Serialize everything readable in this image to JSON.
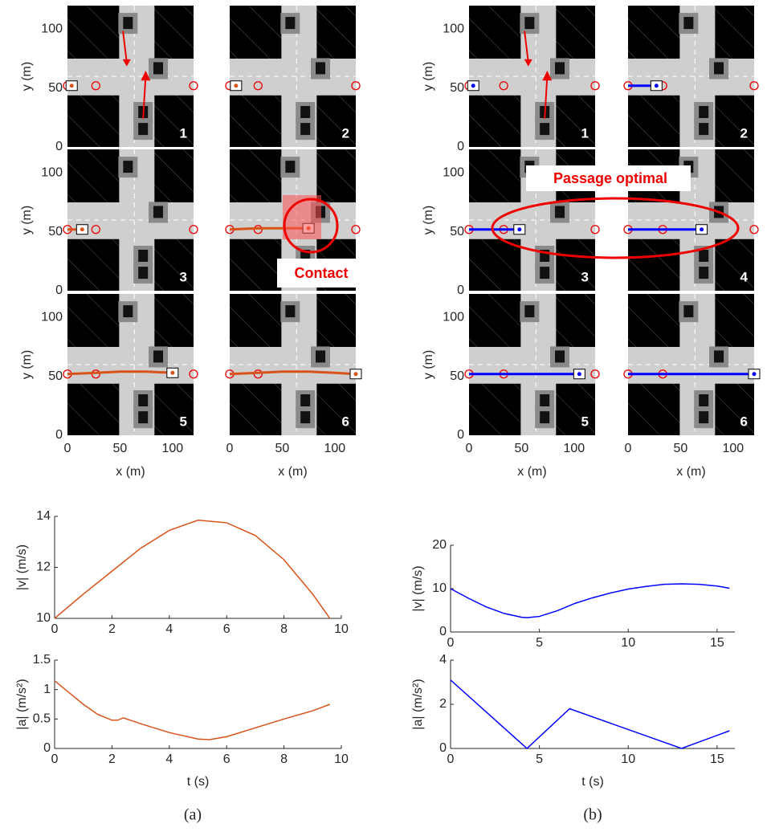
{
  "chart_data": [
    {
      "type": "trajectory-grid",
      "xlabel": "x (m)",
      "ylabel": "y (m)",
      "xlim": [
        0,
        120
      ],
      "ylim": [
        0,
        120
      ],
      "xticks": [
        0,
        50,
        100
      ],
      "yticks": [
        0,
        50,
        100
      ],
      "color": "#d95319",
      "waypoints": {
        "x": [
          0,
          27,
          120
        ],
        "y": [
          52,
          52,
          52
        ]
      },
      "panels": [
        {
          "label": "1",
          "x": [
            4
          ],
          "y": [
            52
          ]
        },
        {
          "label": "2",
          "x": [
            6
          ],
          "y": [
            52
          ]
        },
        {
          "label": "3",
          "x": [
            0,
            14
          ],
          "y": [
            52,
            52
          ]
        },
        {
          "label": "4",
          "x": [
            0,
            27,
            50,
            75
          ],
          "y": [
            52,
            53,
            53,
            53
          ]
        },
        {
          "label": "5",
          "x": [
            0,
            27,
            50,
            75,
            100
          ],
          "y": [
            52,
            53,
            54,
            54,
            53
          ]
        },
        {
          "label": "6",
          "x": [
            0,
            27,
            50,
            75,
            100,
            120
          ],
          "y": [
            52,
            53,
            54,
            54,
            53,
            52
          ]
        }
      ],
      "annotation": "Contact"
    },
    {
      "type": "trajectory-grid",
      "xlabel": "x (m)",
      "ylabel": "y (m)",
      "xlim": [
        0,
        120
      ],
      "ylim": [
        0,
        120
      ],
      "xticks": [
        0,
        50,
        100
      ],
      "yticks": [
        0,
        50,
        100
      ],
      "color": "#0000ff",
      "waypoints": {
        "x": [
          0,
          33,
          120
        ],
        "y": [
          52,
          52,
          52
        ]
      },
      "panels": [
        {
          "label": "1",
          "x": [
            4
          ],
          "y": [
            52
          ]
        },
        {
          "label": "2",
          "x": [
            0,
            27
          ],
          "y": [
            52,
            52
          ]
        },
        {
          "label": "3",
          "x": [
            0,
            48
          ],
          "y": [
            52,
            52
          ]
        },
        {
          "label": "4",
          "x": [
            0,
            70
          ],
          "y": [
            52,
            52
          ]
        },
        {
          "label": "5",
          "x": [
            0,
            105
          ],
          "y": [
            52,
            52
          ]
        },
        {
          "label": "6",
          "x": [
            0,
            120
          ],
          "y": [
            52,
            52
          ]
        }
      ],
      "annotation": "Passage optimal"
    },
    {
      "type": "line",
      "ylabel": "|v| (m/s)",
      "color": "#d95319",
      "xlim": [
        0,
        10
      ],
      "ylim": [
        10,
        14
      ],
      "xticks": [
        0,
        2,
        4,
        6,
        8,
        10
      ],
      "yticks": [
        10,
        12,
        14
      ],
      "x": [
        0,
        1,
        2,
        3,
        4,
        5,
        6,
        7,
        8,
        9,
        9.6
      ],
      "values": [
        10,
        10.95,
        11.85,
        12.75,
        13.45,
        13.85,
        13.75,
        13.25,
        12.3,
        10.95,
        10
      ]
    },
    {
      "type": "line",
      "xlabel": "t (s)",
      "ylabel": "|a| (m/s²)",
      "color": "#d95319",
      "xlim": [
        0,
        10
      ],
      "ylim": [
        0,
        1.5
      ],
      "xticks": [
        0,
        2,
        4,
        6,
        8,
        10
      ],
      "yticks": [
        0,
        0.5,
        1,
        1.5
      ],
      "x": [
        0,
        0.5,
        1,
        1.5,
        2,
        2.2,
        2.4,
        3,
        4,
        5,
        5.4,
        6,
        7,
        8,
        9,
        9.6
      ],
      "values": [
        1.15,
        0.95,
        0.75,
        0.58,
        0.48,
        0.48,
        0.52,
        0.42,
        0.27,
        0.16,
        0.15,
        0.2,
        0.35,
        0.5,
        0.64,
        0.75
      ]
    },
    {
      "type": "line",
      "ylabel": "|v| (m/s)",
      "color": "#0000ff",
      "xlim": [
        0,
        16
      ],
      "ylim": [
        0,
        20
      ],
      "xticks": [
        0,
        5,
        10,
        15
      ],
      "yticks": [
        0,
        10,
        20
      ],
      "x": [
        0,
        1,
        2,
        3,
        4,
        4.3,
        5,
        6,
        7,
        8,
        9,
        10,
        11,
        12,
        13,
        14,
        15,
        15.7
      ],
      "values": [
        10,
        7.8,
        5.8,
        4.3,
        3.4,
        3.3,
        3.6,
        4.9,
        6.6,
        7.9,
        9,
        9.9,
        10.5,
        11,
        11.1,
        11,
        10.6,
        10.1
      ]
    },
    {
      "type": "line",
      "xlabel": "t (s)",
      "ylabel": "|a| (m/s²)",
      "color": "#0000ff",
      "xlim": [
        0,
        16
      ],
      "ylim": [
        0,
        4
      ],
      "xticks": [
        0,
        5,
        10,
        15
      ],
      "yticks": [
        0,
        2,
        4
      ],
      "x": [
        0,
        4.3,
        6.7,
        13,
        15.7
      ],
      "values": [
        3.1,
        0,
        1.8,
        0,
        0.8
      ]
    }
  ],
  "captions": [
    "(a)",
    "(b)"
  ]
}
